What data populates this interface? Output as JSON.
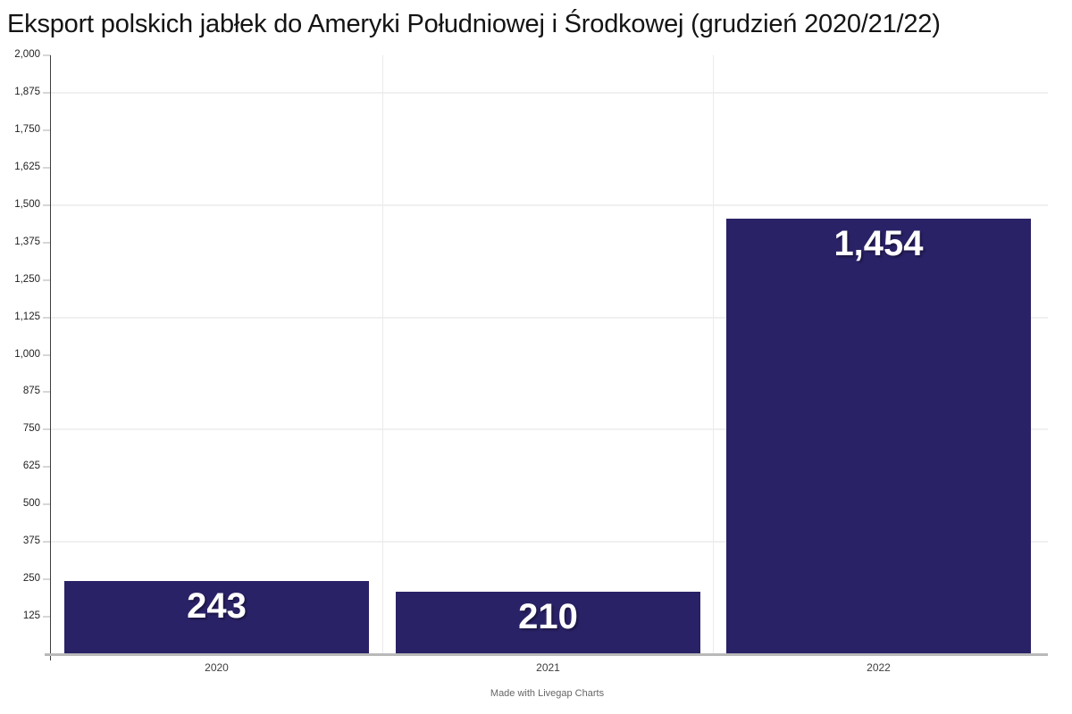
{
  "chart_data": {
    "type": "bar",
    "title": "Eksport polskich jabłek do Ameryki Południowej i Środkowej (grudzień 2020/21/22)",
    "categories": [
      "2020",
      "2021",
      "2022"
    ],
    "values": [
      243,
      210,
      1454
    ],
    "value_labels": [
      "243",
      "210",
      "1,454"
    ],
    "xlabel": "",
    "ylabel": "",
    "ylim": [
      0,
      2000
    ],
    "ytick_step": 125,
    "ytick_labels": [
      "125",
      "250",
      "375",
      "500",
      "625",
      "750",
      "875",
      "1,000",
      "1,125",
      "1,250",
      "1,375",
      "1,500",
      "1,625",
      "1,750",
      "1,875",
      "2,000"
    ],
    "major_gridlines_y": [
      375,
      750,
      1125,
      1500,
      1875
    ],
    "grid": "light horizontal major gridlines plus vertical category separators",
    "legend": "none",
    "bar_color": "#2a2267",
    "value_label_color": "#ffffff"
  },
  "footer": "Made with Livegap Charts"
}
